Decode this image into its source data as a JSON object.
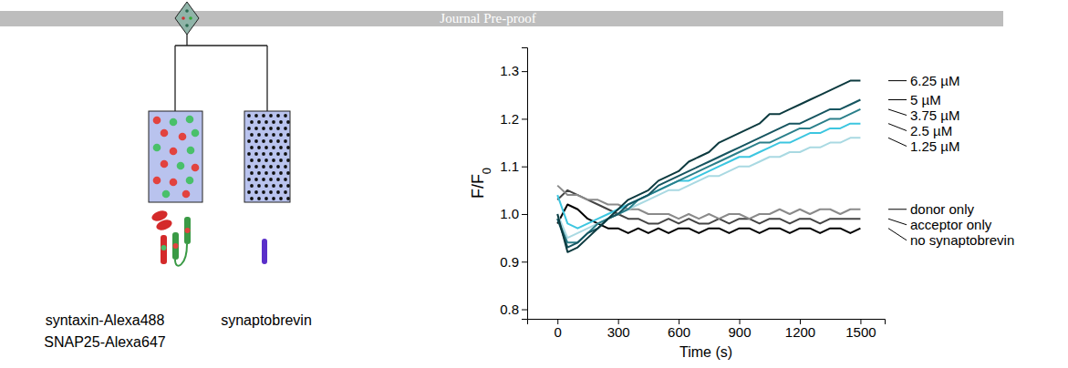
{
  "header": "Journal Pre-proof",
  "schematic": {
    "left_labels": [
      "syntaxin-Alexa488",
      "SNAP25-Alexa647"
    ],
    "right_label": "synaptobrevin"
  },
  "chart_data": {
    "type": "line",
    "x_label": "Time (s)",
    "y_label": "F/F0",
    "xlim": [
      -150,
      1620
    ],
    "ylim": [
      0.78,
      1.35
    ],
    "xticks": [
      0,
      300,
      600,
      900,
      1200,
      1500
    ],
    "yticks": [
      0.8,
      0.9,
      {
        "value": 1,
        "label": "1.0"
      },
      1.1,
      1.2,
      1.3
    ],
    "x": [
      0,
      50,
      100,
      150,
      200,
      250,
      300,
      350,
      400,
      450,
      500,
      550,
      600,
      650,
      700,
      750,
      800,
      850,
      900,
      950,
      1000,
      1050,
      1100,
      1150,
      1200,
      1250,
      1300,
      1350,
      1400,
      1450,
      1500
    ],
    "series": [
      {
        "name": "6.25 µM",
        "color": "#0c3a3f",
        "values": [
          1.0,
          0.92,
          0.93,
          0.95,
          0.97,
          0.99,
          1.01,
          1.03,
          1.04,
          1.05,
          1.07,
          1.08,
          1.09,
          1.11,
          1.12,
          1.13,
          1.15,
          1.16,
          1.17,
          1.18,
          1.19,
          1.21,
          1.21,
          1.22,
          1.23,
          1.24,
          1.25,
          1.26,
          1.27,
          1.28,
          1.28
        ]
      },
      {
        "name": "5 µM",
        "color": "#165560",
        "values": [
          0.99,
          0.93,
          0.94,
          0.96,
          0.97,
          0.99,
          1.0,
          1.02,
          1.03,
          1.04,
          1.06,
          1.07,
          1.08,
          1.09,
          1.1,
          1.11,
          1.12,
          1.13,
          1.14,
          1.15,
          1.16,
          1.17,
          1.18,
          1.19,
          1.19,
          1.2,
          1.21,
          1.22,
          1.22,
          1.23,
          1.24
        ]
      },
      {
        "name": "3.75 µM",
        "color": "#2a7f8a",
        "values": [
          0.99,
          0.94,
          0.94,
          0.96,
          0.98,
          0.99,
          1.0,
          1.01,
          1.03,
          1.04,
          1.05,
          1.06,
          1.07,
          1.08,
          1.09,
          1.1,
          1.11,
          1.12,
          1.13,
          1.14,
          1.15,
          1.15,
          1.16,
          1.17,
          1.18,
          1.18,
          1.19,
          1.2,
          1.2,
          1.21,
          1.22
        ]
      },
      {
        "name": "2.5 µM",
        "color": "#3cc6e0",
        "values": [
          1.04,
          0.98,
          0.97,
          0.98,
          0.99,
          1.0,
          1.01,
          1.02,
          1.03,
          1.04,
          1.05,
          1.06,
          1.07,
          1.07,
          1.08,
          1.09,
          1.1,
          1.11,
          1.12,
          1.12,
          1.13,
          1.14,
          1.15,
          1.15,
          1.16,
          1.17,
          1.17,
          1.18,
          1.18,
          1.19,
          1.19
        ]
      },
      {
        "name": "1.25 µM",
        "color": "#a9d9e2",
        "values": [
          1.0,
          0.95,
          0.96,
          0.97,
          0.98,
          0.99,
          1.0,
          1.01,
          1.02,
          1.03,
          1.04,
          1.05,
          1.05,
          1.06,
          1.07,
          1.08,
          1.08,
          1.09,
          1.1,
          1.1,
          1.11,
          1.12,
          1.12,
          1.13,
          1.13,
          1.14,
          1.14,
          1.15,
          1.15,
          1.16,
          1.16
        ]
      },
      {
        "name": "donor only",
        "color": "#8a8a8a",
        "values": [
          1.06,
          1.04,
          1.04,
          1.03,
          1.03,
          1.02,
          1.02,
          1.01,
          1.01,
          1.0,
          1.0,
          1.0,
          0.99,
          1.0,
          0.99,
          1.0,
          0.99,
          1.0,
          1.0,
          0.99,
          1.0,
          1.0,
          1.01,
          1.0,
          1.01,
          1.0,
          1.01,
          1.01,
          1.0,
          1.01,
          1.01
        ]
      },
      {
        "name": "acceptor only",
        "color": "#444444",
        "values": [
          1.03,
          1.05,
          1.04,
          1.03,
          1.02,
          1.01,
          1.0,
          0.99,
          0.99,
          0.98,
          0.98,
          0.99,
          0.98,
          0.99,
          0.98,
          0.98,
          0.99,
          0.98,
          0.99,
          0.99,
          0.98,
          0.99,
          0.99,
          0.98,
          0.99,
          0.99,
          0.98,
          0.99,
          0.99,
          0.99,
          0.99
        ]
      },
      {
        "name": "no synaptobrevin",
        "color": "#000000",
        "values": [
          0.98,
          1.02,
          1.01,
          0.99,
          0.98,
          0.97,
          0.97,
          0.96,
          0.97,
          0.96,
          0.97,
          0.96,
          0.97,
          0.97,
          0.96,
          0.97,
          0.97,
          0.96,
          0.97,
          0.97,
          0.96,
          0.97,
          0.97,
          0.96,
          0.97,
          0.97,
          0.96,
          0.97,
          0.97,
          0.96,
          0.97
        ]
      }
    ]
  }
}
